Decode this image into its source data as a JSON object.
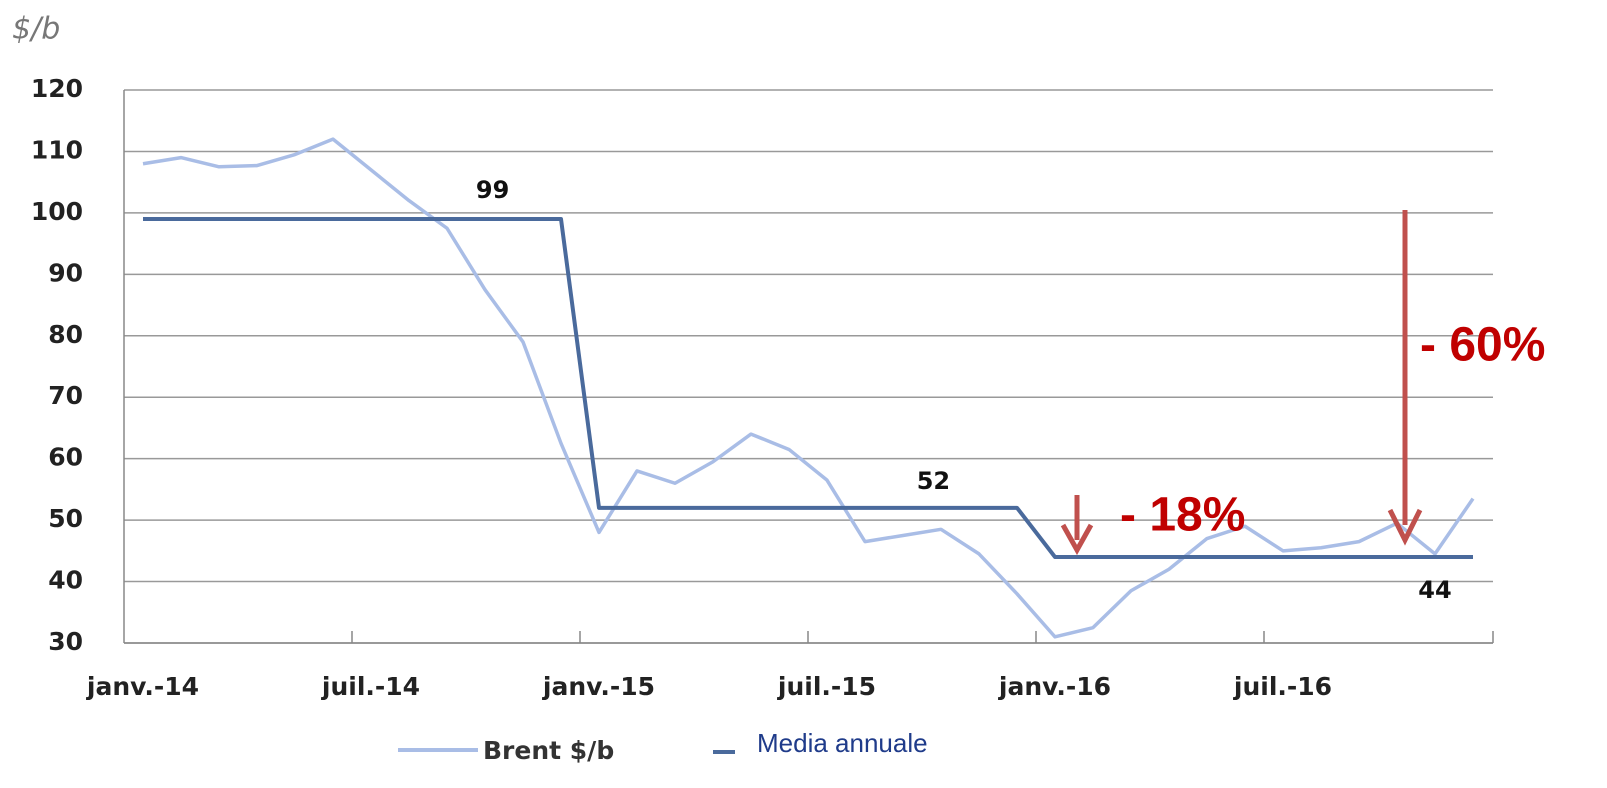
{
  "chart_data": {
    "type": "line",
    "y_unit": "$/b",
    "categories": [
      "janv.-14",
      null,
      null,
      null,
      null,
      null,
      "juil.-14",
      null,
      null,
      null,
      null,
      null,
      "janv.-15",
      null,
      null,
      null,
      null,
      null,
      "juil.-15",
      null,
      null,
      null,
      null,
      null,
      "janv.-16",
      null,
      null,
      null,
      null,
      null,
      "juil.-16",
      null,
      null,
      null,
      null,
      null
    ],
    "series": [
      {
        "name": "Brent $/b",
        "color": "#a9bde6",
        "values": [
          108,
          109,
          107.5,
          107.7,
          109.5,
          112,
          107,
          102,
          97.5,
          87.5,
          79,
          62.5,
          48,
          58,
          56,
          59.5,
          64,
          61.5,
          56.5,
          46.5,
          47.5,
          48.5,
          44.5,
          38,
          31,
          32.5,
          38.5,
          42,
          47,
          49,
          45,
          45.5,
          46.5,
          49.5,
          44.5,
          53.5
        ]
      },
      {
        "name": "Media annuale",
        "color": "#4a6a9c",
        "values": [
          99,
          99,
          99,
          99,
          99,
          99,
          99,
          99,
          99,
          99,
          99,
          99,
          52,
          52,
          52,
          52,
          52,
          52,
          52,
          52,
          52,
          52,
          52,
          52,
          44,
          44,
          44,
          44,
          44,
          44,
          44,
          44,
          44,
          44,
          44,
          44
        ]
      }
    ],
    "annotations": [
      "- 60%",
      "- 18%"
    ],
    "ylim": [
      30,
      120
    ],
    "yticks": [
      30,
      40,
      50,
      60,
      70,
      80,
      90,
      100,
      110,
      120
    ],
    "grid": true
  }
}
